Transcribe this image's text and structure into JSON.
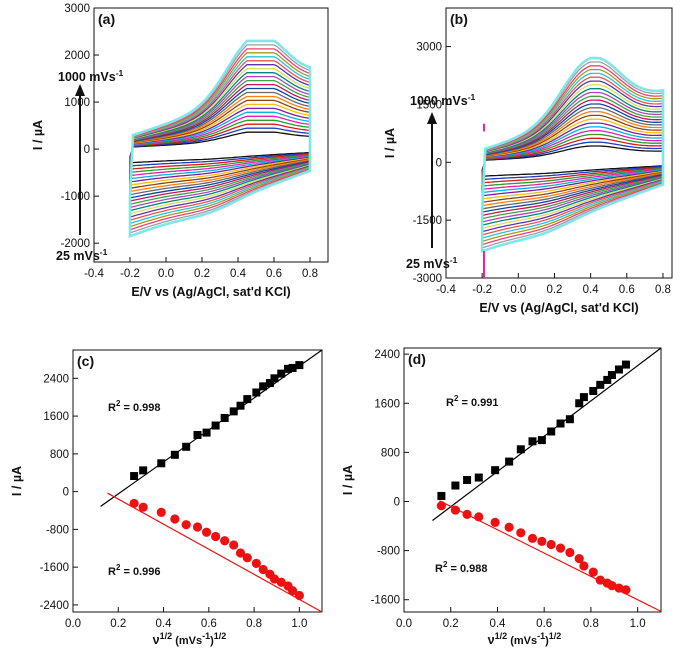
{
  "chart_data": [
    {
      "type": "line",
      "panel": "(a)",
      "xlabel": "E/V  vs (Ag/AgCl, sat'd KCl)",
      "ylabel": "I / µA",
      "xlim": [
        -0.4,
        0.9
      ],
      "ylim": [
        -2400,
        3000
      ],
      "xticks": [
        "-0.4",
        "-0.2",
        "0.0",
        "0.2",
        "0.4",
        "0.6",
        "0.8"
      ],
      "xtick_values": [
        -0.4,
        -0.2,
        0.0,
        0.2,
        0.4,
        0.6,
        0.8
      ],
      "yticks": [
        "-2000",
        "-1000",
        "0",
        "1000",
        "2000",
        "3000"
      ],
      "ytick_values": [
        -2000,
        -1000,
        0,
        1000,
        2000,
        3000
      ],
      "scan_rate_low": "25 mVs",
      "scan_rate_high": "1000 mVs",
      "scan_rate_exp": "-1",
      "num_scans": 24,
      "peak_potential": 0.5,
      "max_anodic_peak": 2300,
      "max_cathodic_start": -1850,
      "legend": "top-left"
    },
    {
      "type": "line",
      "panel": "(b)",
      "xlabel": "E/V  vs (Ag/AgCl, sat'd KCl)",
      "ylabel": "I / µA",
      "xlim": [
        -0.4,
        0.85
      ],
      "ylim": [
        -3000,
        4000
      ],
      "xticks": [
        "-0.4",
        "-0.2",
        "0.0",
        "0.2",
        "0.4",
        "0.6",
        "0.8"
      ],
      "xtick_values": [
        -0.4,
        -0.2,
        0.0,
        0.2,
        0.4,
        0.6,
        0.8
      ],
      "yticks": [
        "-3000",
        "-1500",
        "0",
        "1500",
        "3000"
      ],
      "ytick_values": [
        -3000,
        -1500,
        0,
        1500,
        3000
      ],
      "scan_rate_low": "25 mVs",
      "scan_rate_high": "1000 mVs",
      "scan_rate_exp": "-1",
      "num_scans": 24,
      "peak_potential": 0.4,
      "max_anodic_peak": 2700,
      "max_cathodic_start": -2300,
      "legend": "top-left"
    },
    {
      "type": "scatter",
      "panel": "(c)",
      "xlabel": "ν",
      "xlabel_sup1": "1/2",
      "xlabel_mid": " (mVs",
      "xlabel_sup2": "-1",
      "xlabel_end": ")",
      "xlabel_sup3": "1/2",
      "ylabel": "I / µA",
      "xlim": [
        0.0,
        1.1
      ],
      "ylim": [
        -2550,
        3000
      ],
      "xticks": [
        "0.0",
        "0.2",
        "0.4",
        "0.6",
        "0.8",
        "1.0"
      ],
      "xtick_values": [
        0.0,
        0.2,
        0.4,
        0.6,
        0.8,
        1.0
      ],
      "yticks": [
        "-2400",
        "-1600",
        "-800",
        "0",
        "800",
        "1600",
        "2400"
      ],
      "ytick_values": [
        -2400,
        -1600,
        -800,
        0,
        800,
        1600,
        2400
      ],
      "series": [
        {
          "name": "anodic",
          "color": "#000000",
          "marker": "square",
          "x": [
            0.27,
            0.31,
            0.39,
            0.45,
            0.5,
            0.55,
            0.59,
            0.63,
            0.67,
            0.71,
            0.74,
            0.77,
            0.81,
            0.84,
            0.87,
            0.89,
            0.92,
            0.95,
            0.97,
            1.0
          ],
          "y": [
            330,
            450,
            600,
            780,
            950,
            1200,
            1250,
            1400,
            1560,
            1700,
            1820,
            1960,
            2100,
            2230,
            2300,
            2400,
            2500,
            2600,
            2620,
            2680
          ],
          "fit": {
            "slope": 3430,
            "intercept": -730
          },
          "r2": "R",
          "r2_text": " = 0.998"
        },
        {
          "name": "cathodic",
          "color": "#ee1111",
          "marker": "circle",
          "x": [
            0.27,
            0.31,
            0.39,
            0.45,
            0.5,
            0.55,
            0.59,
            0.63,
            0.67,
            0.71,
            0.74,
            0.77,
            0.81,
            0.84,
            0.87,
            0.89,
            0.92,
            0.95,
            0.97,
            1.0
          ],
          "y": [
            -250,
            -330,
            -440,
            -580,
            -700,
            -750,
            -860,
            -950,
            -1040,
            -1130,
            -1300,
            -1400,
            -1520,
            -1650,
            -1750,
            -1850,
            -1920,
            -2000,
            -2100,
            -2200
          ],
          "fit": {
            "slope": -2700,
            "intercept": 380
          },
          "r2": "R",
          "r2_text": " = 0.996"
        }
      ]
    },
    {
      "type": "scatter",
      "panel": "(d)",
      "xlabel": "ν",
      "xlabel_sup1": "1/2",
      "xlabel_mid": " (mVs",
      "xlabel_sup2": "-1",
      "xlabel_end": ")",
      "xlabel_sup3": "1/2",
      "ylabel": "I / µA",
      "xlim": [
        0.0,
        1.1
      ],
      "ylim": [
        -1800,
        2500
      ],
      "xticks": [
        "0.0",
        "0.2",
        "0.4",
        "0.6",
        "0.8",
        "1.0"
      ],
      "xtick_values": [
        0.0,
        0.2,
        0.4,
        0.6,
        0.8,
        1.0
      ],
      "yticks": [
        "-1600",
        "-800",
        "0",
        "800",
        "1600",
        "2400"
      ],
      "ytick_values": [
        -1600,
        -800,
        0,
        800,
        1600,
        2400
      ],
      "series": [
        {
          "name": "anodic",
          "color": "#000000",
          "marker": "square",
          "x": [
            0.16,
            0.22,
            0.27,
            0.32,
            0.39,
            0.45,
            0.5,
            0.55,
            0.59,
            0.63,
            0.67,
            0.71,
            0.75,
            0.77,
            0.81,
            0.84,
            0.87,
            0.89,
            0.92,
            0.95
          ],
          "y": [
            90,
            260,
            350,
            390,
            510,
            650,
            850,
            980,
            1000,
            1140,
            1270,
            1340,
            1600,
            1700,
            1800,
            1900,
            1980,
            2060,
            2150,
            2230
          ],
          "fit": {
            "slope": 3200,
            "intercept": -700
          },
          "r2": "R",
          "r2_text": " = 0.991"
        },
        {
          "name": "cathodic",
          "color": "#ee1111",
          "marker": "circle",
          "x": [
            0.16,
            0.22,
            0.27,
            0.32,
            0.39,
            0.45,
            0.5,
            0.55,
            0.59,
            0.63,
            0.67,
            0.71,
            0.75,
            0.77,
            0.81,
            0.84,
            0.87,
            0.89,
            0.92,
            0.95
          ],
          "y": [
            -70,
            -140,
            -210,
            -250,
            -340,
            -420,
            -510,
            -600,
            -650,
            -700,
            -760,
            -830,
            -930,
            -1050,
            -1150,
            -1280,
            -1330,
            -1370,
            -1410,
            -1440
          ],
          "fit": {
            "slope": -1900,
            "intercept": 300
          },
          "r2": "R",
          "r2_text": " = 0.988"
        }
      ]
    }
  ]
}
